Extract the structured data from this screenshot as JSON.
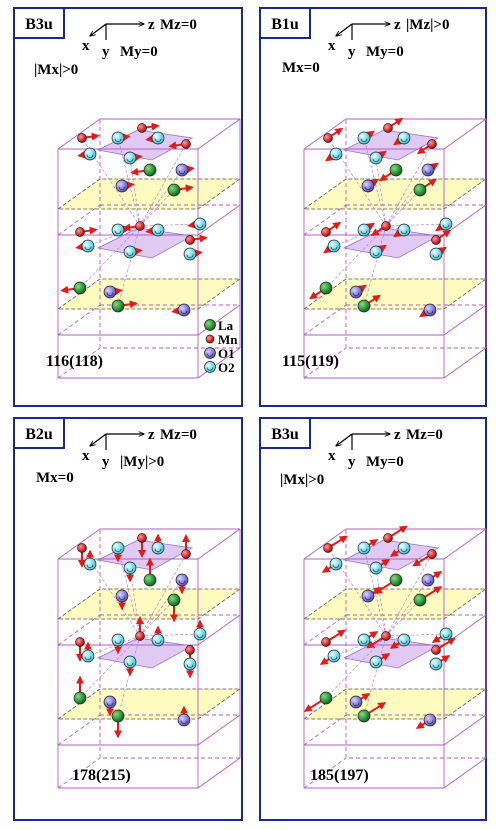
{
  "panels": [
    {
      "mode": "B3u",
      "axis_z": "z",
      "axis_x": "x",
      "axis_y": "y",
      "cond1": "Mz=0",
      "cond2": "My=0",
      "cond3": "|Mx|>0",
      "frequency": "116(118)",
      "legend": [
        {
          "label": "La",
          "color": "#1a8f2a"
        },
        {
          "label": "Mn",
          "color": "#e31b1b"
        },
        {
          "label": "O1",
          "color": "#8a80e0"
        },
        {
          "label": "O2",
          "color": "#7fe6f0"
        }
      ]
    },
    {
      "mode": "B1u",
      "axis_z": "z",
      "axis_x": "x",
      "axis_y": "y",
      "cond1": "|Mz|>0",
      "cond2": "My=0",
      "cond3": "Mx=0",
      "frequency": "115(119)"
    },
    {
      "mode": "B2u",
      "axis_z": "z",
      "axis_x": "x",
      "axis_y": "y",
      "cond1": "Mz=0",
      "cond2": "|My|>0",
      "cond3": "Mx=0",
      "frequency": "178(215)"
    },
    {
      "mode": "B3u",
      "axis_z": "z",
      "axis_x": "x",
      "axis_y": "y",
      "cond1": "Mz=0",
      "cond2": "My=0",
      "cond3": "|Mx|>0",
      "frequency": "185(197)"
    }
  ],
  "colors": {
    "frame": "#1a2a8c",
    "cube": "#b060c0",
    "plane_yellow": "#fdfbc0",
    "plane_purple": "#d6b8f0",
    "arrow": "#e31b1b"
  }
}
